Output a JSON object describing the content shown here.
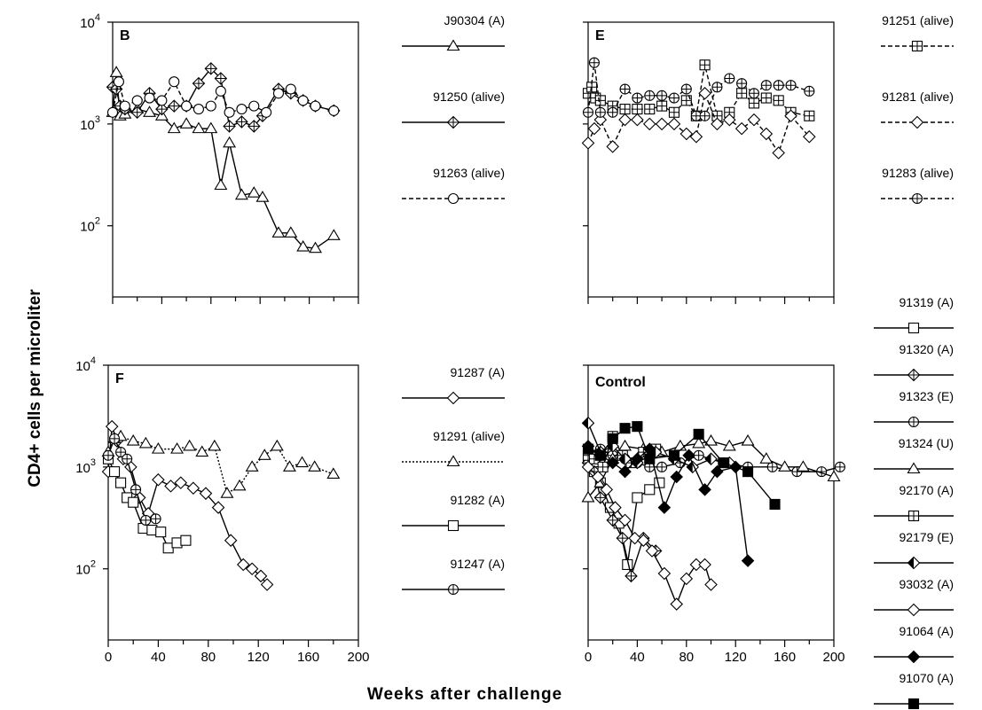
{
  "figure": {
    "ylabel": "CD4+ cells per microliter",
    "xlabel": "Weeks after challenge"
  },
  "chart_data": [
    {
      "type": "line",
      "panel": "B",
      "yscale": "log",
      "ylim": [
        20,
        10000
      ],
      "xlim": [
        0,
        200
      ],
      "ytick_labels": [
        "10^2",
        "10^3",
        "10^4"
      ],
      "xtick_labels": [],
      "series": [
        {
          "name": "J90304 (A)",
          "marker": "triangle",
          "dash": "solid",
          "x": [
            0,
            3,
            6,
            10,
            20,
            30,
            40,
            50,
            60,
            70,
            80,
            88,
            95,
            105,
            115,
            122,
            135,
            145,
            155,
            165,
            180
          ],
          "y": [
            1300,
            3200,
            1200,
            1250,
            1400,
            1300,
            1200,
            900,
            1000,
            900,
            900,
            250,
            650,
            200,
            210,
            190,
            85,
            85,
            62,
            60,
            80
          ]
        },
        {
          "name": "91250 (alive)",
          "marker": "crossed-diamond",
          "dash": "solid",
          "x": [
            0,
            3,
            6,
            10,
            20,
            30,
            40,
            50,
            60,
            70,
            80,
            88,
            95,
            105,
            115,
            122,
            135,
            145,
            155,
            165,
            180
          ],
          "y": [
            2300,
            2200,
            1500,
            1400,
            1300,
            2000,
            1400,
            1500,
            1500,
            2500,
            3500,
            2800,
            950,
            1050,
            950,
            1200,
            2200,
            2000,
            1700,
            1500,
            1350
          ]
        },
        {
          "name": "91263 (alive)",
          "marker": "circle",
          "dash": "dashed",
          "x": [
            0,
            5,
            10,
            20,
            30,
            40,
            50,
            60,
            70,
            80,
            88,
            95,
            105,
            115,
            125,
            135,
            145,
            155,
            165,
            180
          ],
          "y": [
            1300,
            2600,
            1500,
            1700,
            1800,
            1700,
            2600,
            1500,
            1400,
            1500,
            2100,
            1300,
            1400,
            1500,
            1300,
            2000,
            2200,
            1700,
            1500,
            1350
          ]
        }
      ]
    },
    {
      "type": "line",
      "panel": "E",
      "yscale": "log",
      "ylim": [
        20,
        10000
      ],
      "xlim": [
        0,
        200
      ],
      "ytick_labels": [],
      "xtick_labels": [],
      "series": [
        {
          "name": "91251 (alive)",
          "marker": "square-plus",
          "dash": "dashed",
          "x": [
            0,
            3,
            6,
            10,
            20,
            30,
            40,
            50,
            60,
            70,
            80,
            88,
            95,
            105,
            115,
            125,
            135,
            145,
            155,
            165,
            180
          ],
          "y": [
            2000,
            2300,
            1800,
            1700,
            1500,
            1400,
            1400,
            1400,
            1500,
            1300,
            1700,
            1200,
            3800,
            1200,
            1300,
            2000,
            1600,
            1800,
            1700,
            1300,
            1200
          ]
        },
        {
          "name": "91281 (alive)",
          "marker": "diamond",
          "dash": "dashed",
          "x": [
            0,
            5,
            10,
            20,
            30,
            40,
            50,
            60,
            70,
            80,
            88,
            95,
            105,
            115,
            125,
            135,
            145,
            155,
            165,
            180
          ],
          "y": [
            650,
            900,
            1100,
            600,
            1100,
            1100,
            1000,
            1000,
            1000,
            800,
            750,
            2000,
            1000,
            1100,
            900,
            1100,
            800,
            520,
            1200,
            750
          ]
        },
        {
          "name": "91283 (alive)",
          "marker": "circle-plus",
          "dash": "dashed",
          "x": [
            0,
            5,
            10,
            20,
            30,
            40,
            50,
            60,
            70,
            80,
            88,
            95,
            105,
            115,
            125,
            135,
            145,
            155,
            165,
            180
          ],
          "y": [
            1300,
            4000,
            1300,
            1300,
            2200,
            1800,
            1900,
            1900,
            1800,
            2200,
            1200,
            1200,
            2300,
            2800,
            2500,
            2000,
            2400,
            2400,
            2400,
            2100
          ]
        }
      ]
    },
    {
      "type": "line",
      "panel": "F",
      "yscale": "log",
      "ylim": [
        20,
        10000
      ],
      "xlim": [
        0,
        200
      ],
      "ytick_labels": [
        "10^2",
        "10^3",
        "10^4"
      ],
      "xtick_labels": [
        "0",
        "40",
        "80",
        "120",
        "160",
        "200"
      ],
      "series": [
        {
          "name": "91287 (A)",
          "marker": "diamond",
          "dash": "solid",
          "x": [
            0,
            3,
            7,
            12,
            18,
            25,
            32,
            40,
            50,
            58,
            68,
            78,
            88,
            98,
            108,
            115,
            122,
            127
          ],
          "y": [
            900,
            2500,
            1800,
            1200,
            1000,
            500,
            350,
            750,
            650,
            700,
            620,
            550,
            400,
            190,
            110,
            100,
            85,
            70
          ]
        },
        {
          "name": "91291 (alive)",
          "marker": "triangle",
          "dash": "dotted",
          "x": [
            0,
            5,
            10,
            20,
            30,
            40,
            55,
            65,
            75,
            85,
            95,
            105,
            115,
            125,
            135,
            145,
            155,
            165,
            180
          ],
          "y": [
            1400,
            1900,
            2000,
            1800,
            1700,
            1500,
            1500,
            1600,
            1400,
            1600,
            550,
            650,
            1000,
            1300,
            1600,
            1000,
            1100,
            1000,
            850
          ]
        },
        {
          "name": "91282 (A)",
          "marker": "square",
          "dash": "solid",
          "x": [
            0,
            5,
            10,
            15,
            20,
            28,
            35,
            42,
            48,
            55,
            62
          ],
          "y": [
            1200,
            900,
            700,
            500,
            450,
            250,
            240,
            230,
            160,
            180,
            190
          ]
        },
        {
          "name": "91247 (A)",
          "marker": "circle-plus",
          "dash": "solid",
          "x": [
            0,
            5,
            10,
            15,
            22,
            30,
            38
          ],
          "y": [
            1300,
            1900,
            1400,
            1200,
            600,
            300,
            310
          ]
        }
      ]
    },
    {
      "type": "line",
      "panel": "Control",
      "yscale": "log",
      "ylim": [
        20,
        10000
      ],
      "xlim": [
        0,
        200
      ],
      "ytick_labels": [],
      "xtick_labels": [
        "0",
        "40",
        "80",
        "120",
        "160",
        "200"
      ],
      "series": [
        {
          "name": "91319 (A)",
          "marker": "square",
          "dash": "solid",
          "x": [
            0,
            5,
            10,
            18,
            25,
            32,
            40,
            50,
            58
          ],
          "y": [
            1200,
            900,
            700,
            400,
            280,
            110,
            500,
            600,
            700
          ]
        },
        {
          "name": "91320 (A)",
          "marker": "crossed-diamond",
          "dash": "solid",
          "x": [
            0,
            5,
            10,
            20,
            28,
            35,
            45,
            55
          ],
          "y": [
            1100,
            900,
            500,
            300,
            200,
            85,
            200,
            150
          ]
        },
        {
          "name": "91323 (E)",
          "marker": "circle-plus",
          "dash": "solid",
          "x": [
            0,
            10,
            20,
            30,
            40,
            50,
            60,
            75,
            90,
            110,
            130,
            150,
            170,
            190,
            205
          ],
          "y": [
            1400,
            1500,
            1300,
            1200,
            1100,
            1000,
            1000,
            1100,
            1300,
            1100,
            1000,
            1000,
            900,
            900,
            1000
          ]
        },
        {
          "name": "91324 (U)",
          "marker": "triangle",
          "dash": "solid",
          "x": [
            0,
            10,
            20,
            30,
            45,
            60,
            75,
            90,
            100,
            115,
            130,
            145,
            160,
            175,
            200
          ],
          "y": [
            500,
            700,
            1200,
            1600,
            1500,
            1400,
            1600,
            1700,
            1800,
            1600,
            1800,
            1200,
            1000,
            1000,
            800
          ]
        },
        {
          "name": "92170 (A)",
          "marker": "square-plus",
          "dash": "solid",
          "x": [
            0,
            5,
            12,
            20,
            28,
            35,
            45,
            55
          ],
          "y": [
            1300,
            1200,
            1000,
            2000,
            1300,
            1100,
            1400,
            1500
          ]
        },
        {
          "name": "92179 (E)",
          "marker": "half-diamond",
          "dash": "solid",
          "x": [
            0,
            10,
            20,
            30,
            40,
            55,
            70,
            85,
            100,
            115
          ],
          "y": [
            2700,
            1400,
            1600,
            1200,
            1100,
            1400,
            1200,
            1000,
            1200,
            1100
          ]
        },
        {
          "name": "93032 (A)",
          "marker": "diamond",
          "dash": "solid",
          "x": [
            0,
            8,
            15,
            22,
            30,
            38,
            45,
            52,
            62,
            72,
            80,
            88,
            95,
            100
          ],
          "y": [
            1000,
            800,
            600,
            400,
            300,
            200,
            190,
            150,
            90,
            45,
            80,
            110,
            110,
            70
          ]
        },
        {
          "name": "91064 (A)",
          "marker": "filled-diamond",
          "dash": "solid",
          "x": [
            0,
            10,
            20,
            30,
            40,
            50,
            62,
            72,
            82,
            95,
            105,
            120,
            130
          ],
          "y": [
            1600,
            1300,
            1100,
            900,
            1200,
            1500,
            400,
            800,
            1300,
            600,
            900,
            1000,
            120
          ]
        },
        {
          "name": "91070 (A)",
          "marker": "filled-square",
          "dash": "solid",
          "x": [
            0,
            10,
            20,
            30,
            40,
            50,
            70,
            90,
            110,
            130,
            152
          ],
          "y": [
            1500,
            1300,
            1900,
            2400,
            2500,
            1200,
            1300,
            2100,
            1100,
            900,
            430
          ]
        }
      ]
    }
  ]
}
